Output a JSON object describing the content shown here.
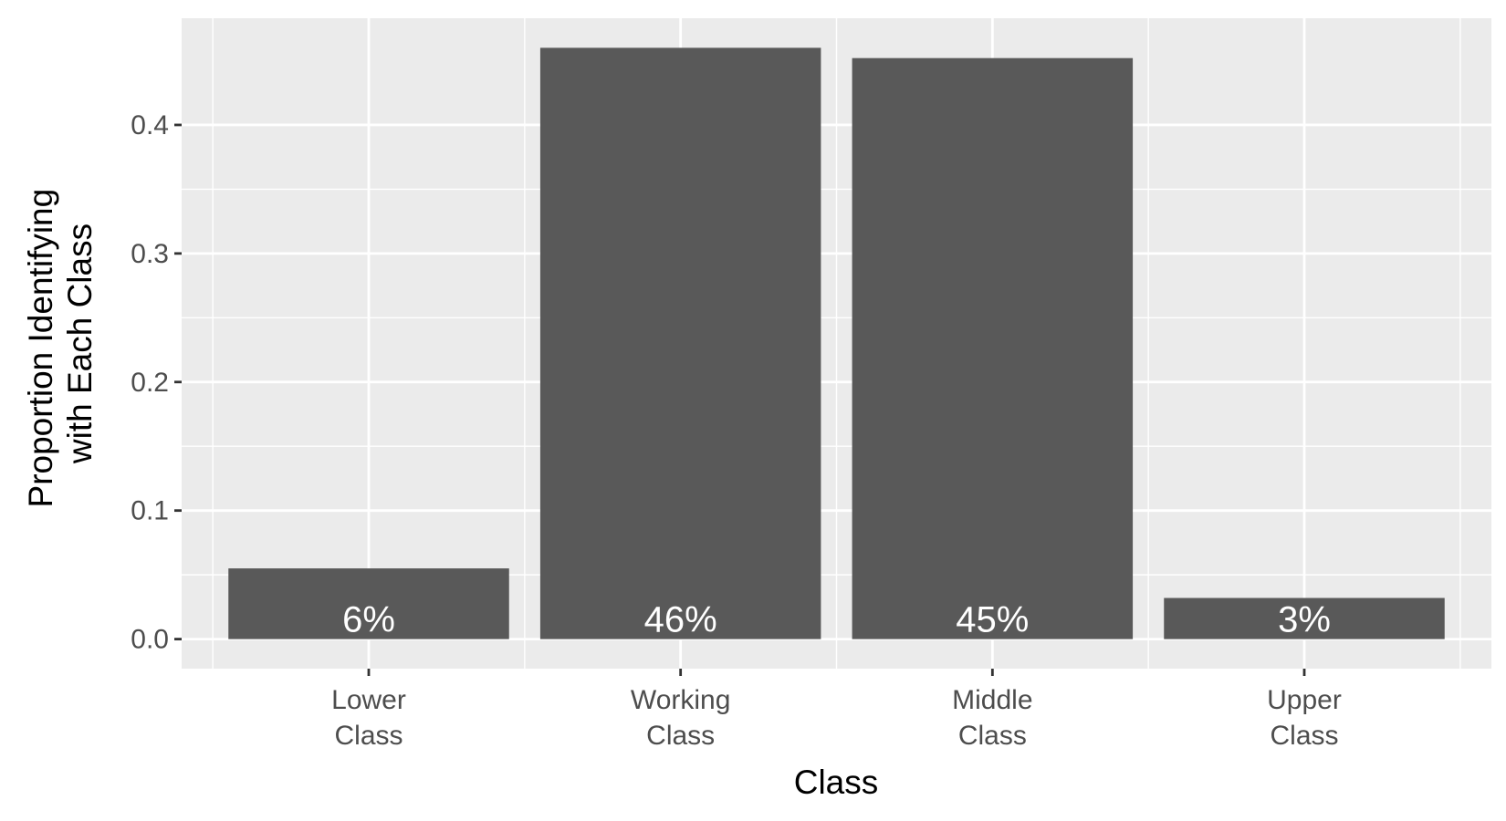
{
  "chart_data": {
    "type": "bar",
    "categories": [
      "Lower\nClass",
      "Working\nClass",
      "Middle\nClass",
      "Upper\nClass"
    ],
    "values": [
      0.055,
      0.46,
      0.452,
      0.032
    ],
    "bar_labels": [
      "6%",
      "46%",
      "45%",
      "3%"
    ],
    "title": "",
    "xlabel": "Class",
    "ylabel": [
      "Proportion Identifying",
      "with Each Class"
    ],
    "ylim": [
      -0.023,
      0.483
    ],
    "y_ticks": [
      0.0,
      0.1,
      0.2,
      0.3,
      0.4
    ],
    "y_tick_labels": [
      "0.0",
      "0.1",
      "0.2",
      "0.3",
      "0.4"
    ],
    "grid": true,
    "legend": "none",
    "colors": {
      "panel_background": "#ebebeb",
      "grid": "#ffffff",
      "bar": "#595959",
      "bar_label": "#ffffff",
      "tick_label": "#4d4d4d",
      "tick_mark": "#333333",
      "axis_title": "#000000"
    }
  }
}
